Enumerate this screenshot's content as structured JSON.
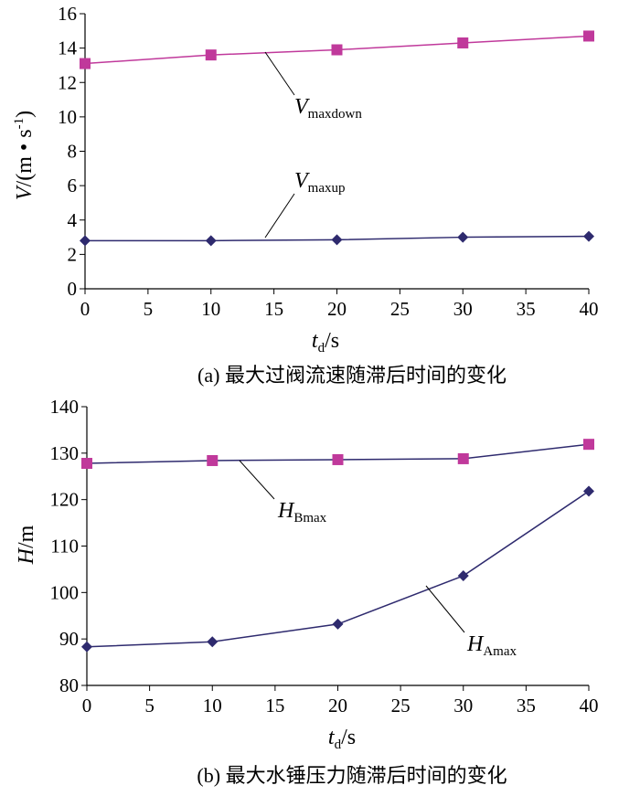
{
  "chart_data": [
    {
      "type": "line",
      "caption": "(a) 最大过阀流速随滞后时间的变化",
      "ylabel_main": "V",
      "ylabel_rest": "/(m • s",
      "ylabel_sup": "-1",
      "ylabel_close": ")",
      "xlabel_main": "t",
      "xlabel_sub": "d",
      "xlabel_rest": "/s",
      "xlim": [
        0,
        40
      ],
      "ylim": [
        0,
        16
      ],
      "xticks": [
        0,
        5,
        10,
        15,
        20,
        25,
        30,
        35,
        40
      ],
      "yticks": [
        0,
        2,
        4,
        6,
        8,
        10,
        12,
        14,
        16
      ],
      "x": [
        0,
        10,
        20,
        30,
        40
      ],
      "series": [
        {
          "label_main": "V",
          "label_sub": "maxdown",
          "values": [
            13.1,
            13.6,
            13.9,
            14.3,
            14.7
          ],
          "line_color": "#c0399b",
          "marker": "square",
          "marker_color": "#c0399b"
        },
        {
          "label_main": "V",
          "label_sub": "maxup",
          "values": [
            2.8,
            2.8,
            2.85,
            3.0,
            3.05
          ],
          "line_color": "#2e2a6e",
          "marker": "diamond",
          "marker_color": "#2e2a6e"
        }
      ]
    },
    {
      "type": "line",
      "caption": "(b) 最大水锤压力随滞后时间的变化",
      "ylabel_main": "H",
      "ylabel_rest": "/m",
      "xlabel_main": "t",
      "xlabel_sub": "d",
      "xlabel_rest": "/s",
      "xlim": [
        0,
        40
      ],
      "ylim": [
        80,
        140
      ],
      "xticks": [
        0,
        5,
        10,
        15,
        20,
        25,
        30,
        35,
        40
      ],
      "yticks": [
        80,
        90,
        100,
        110,
        120,
        130,
        140
      ],
      "x": [
        0,
        10,
        20,
        30,
        40
      ],
      "series": [
        {
          "label_main": "H",
          "label_sub": "Bmax",
          "values": [
            127.8,
            128.4,
            128.6,
            128.8,
            131.9
          ],
          "line_color": "#2e2a6e",
          "marker": "square",
          "marker_color": "#c0399b"
        },
        {
          "label_main": "H",
          "label_sub": "Amax",
          "values": [
            88.3,
            89.4,
            93.2,
            103.6,
            121.8
          ],
          "line_color": "#2e2a6e",
          "marker": "diamond",
          "marker_color": "#2e2a6e"
        }
      ]
    }
  ]
}
